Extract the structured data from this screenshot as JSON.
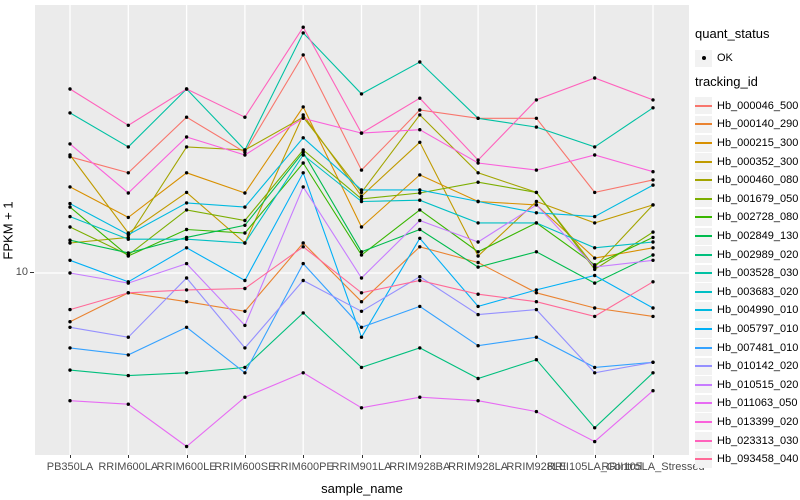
{
  "figure": {
    "y_axis_title": "FPKM + 1",
    "x_axis_title": "sample_name",
    "y_tick_label": "10"
  },
  "legend": {
    "quant_status_title": "quant_status",
    "quant_status_items": [
      {
        "label": "OK"
      }
    ],
    "tracking_id_title": "tracking_id"
  },
  "chart_data": {
    "type": "line",
    "title": "",
    "xlabel": "sample_name",
    "ylabel": "FPKM + 1",
    "y_scale": "log10",
    "y_tick_values": [
      10
    ],
    "grid": true,
    "panel_bg": "#EBEBEB",
    "grid_color": "#FFFFFF",
    "point_color": "#000000",
    "legend_position": "right",
    "categories": [
      "PB350LA",
      "RRIM600LA",
      "RRIM600LE",
      "RRIM600SE",
      "RRIM600PE",
      "RRIM901LA",
      "RRIM928BA",
      "RRIM928LA",
      "RRIM928LE",
      "RRII105LA_Control",
      "RRII105LA_Stressed"
    ],
    "series": [
      {
        "name": "Hb_000046_500",
        "color": "#F8766D",
        "values": [
          26.0,
          22.8,
          36.0,
          27.0,
          60.1,
          23.3,
          38.2,
          35.7,
          35.7,
          19.4,
          21.5
        ]
      },
      {
        "name": "Hb_000140_290",
        "color": "#EA8331",
        "values": [
          6.7,
          8.5,
          7.9,
          7.3,
          12.8,
          7.9,
          12.4,
          10.9,
          8.5,
          7.5,
          7.0
        ]
      },
      {
        "name": "Hb_000215_300",
        "color": "#D89000",
        "values": [
          20.3,
          15.8,
          22.8,
          19.3,
          39.2,
          14.6,
          22.4,
          18.0,
          17.5,
          11.3,
          12.3
        ]
      },
      {
        "name": "Hb_000352_300",
        "color": "#C09B00",
        "values": [
          26.4,
          13.9,
          19.4,
          12.8,
          36.7,
          18.8,
          29.3,
          11.5,
          18.0,
          15.1,
          17.5
        ]
      },
      {
        "name": "Hb_000460_080",
        "color": "#A3A500",
        "values": [
          12.8,
          13.4,
          28.2,
          27.5,
          36.0,
          19.4,
          36.7,
          22.8,
          19.4,
          10.5,
          17.5
        ]
      },
      {
        "name": "Hb_001679_050",
        "color": "#7CAE00",
        "values": [
          14.6,
          11.6,
          16.8,
          15.4,
          27.5,
          18.4,
          19.3,
          21.1,
          19.4,
          10.3,
          14.0
        ]
      },
      {
        "name": "Hb_002728_080",
        "color": "#39B600",
        "values": [
          17.2,
          11.5,
          14.3,
          13.9,
          24.7,
          11.6,
          16.8,
          11.9,
          15.1,
          10.7,
          13.4
        ]
      },
      {
        "name": "Hb_002849_130",
        "color": "#00BB4E",
        "values": [
          13.1,
          11.8,
          13.4,
          14.8,
          27.0,
          11.9,
          14.3,
          10.5,
          11.9,
          9.2,
          11.6
        ]
      },
      {
        "name": "Hb_002989_020",
        "color": "#00BF7D",
        "values": [
          4.5,
          4.3,
          4.4,
          4.6,
          7.2,
          4.6,
          5.4,
          4.2,
          4.9,
          2.8,
          4.4
        ]
      },
      {
        "name": "Hb_003528_030",
        "color": "#00C1A3",
        "values": [
          37.3,
          28.2,
          45.4,
          27.5,
          72.0,
          43.6,
          56.7,
          35.7,
          33.2,
          28.2,
          38.9
        ]
      },
      {
        "name": "Hb_003683_020",
        "color": "#00BFC4",
        "values": [
          15.9,
          13.2,
          13.2,
          12.8,
          26.4,
          18.0,
          18.2,
          15.1,
          15.1,
          12.3,
          12.9
        ]
      },
      {
        "name": "Hb_004990_010",
        "color": "#00BAE0",
        "values": [
          17.7,
          13.7,
          17.8,
          17.2,
          30.4,
          19.8,
          19.8,
          18.0,
          16.4,
          15.9,
          20.6
        ]
      },
      {
        "name": "Hb_005797_010",
        "color": "#00B0F6",
        "values": [
          11.1,
          9.3,
          12.3,
          9.4,
          22.8,
          5.9,
          13.3,
          7.6,
          8.7,
          9.8,
          7.5
        ]
      },
      {
        "name": "Hb_007481_010",
        "color": "#35A2FF",
        "values": [
          5.4,
          5.1,
          6.4,
          4.4,
          10.8,
          6.4,
          7.6,
          5.5,
          5.9,
          4.6,
          4.8
        ]
      },
      {
        "name": "Hb_010142_020",
        "color": "#9590FF",
        "values": [
          6.4,
          5.9,
          9.6,
          5.4,
          9.4,
          7.3,
          9.7,
          7.1,
          7.4,
          4.4,
          4.8
        ]
      },
      {
        "name": "Hb_010515_020",
        "color": "#C77CFF",
        "values": [
          10.0,
          9.2,
          10.8,
          6.5,
          20.3,
          9.6,
          15.4,
          12.9,
          17.5,
          10.5,
          11.1
        ]
      },
      {
        "name": "Hb_011063_050",
        "color": "#E76BF3",
        "values": [
          3.5,
          3.4,
          2.4,
          3.6,
          4.4,
          3.3,
          3.6,
          3.5,
          3.2,
          2.5,
          3.8
        ]
      },
      {
        "name": "Hb_013399_020",
        "color": "#FA62DB",
        "values": [
          28.9,
          19.3,
          30.6,
          26.4,
          35.7,
          31.6,
          32.5,
          24.7,
          23.3,
          26.4,
          23.0
        ]
      },
      {
        "name": "Hb_023313_030",
        "color": "#FF62BC",
        "values": [
          45.4,
          33.7,
          45.4,
          36.0,
          75.5,
          31.6,
          42.1,
          25.3,
          41.5,
          49.7,
          41.5
        ]
      },
      {
        "name": "Hb_093458_040",
        "color": "#FF6A98",
        "values": [
          7.4,
          8.5,
          8.7,
          8.8,
          12.4,
          8.5,
          9.4,
          8.4,
          7.9,
          7.0,
          9.3
        ]
      }
    ]
  }
}
